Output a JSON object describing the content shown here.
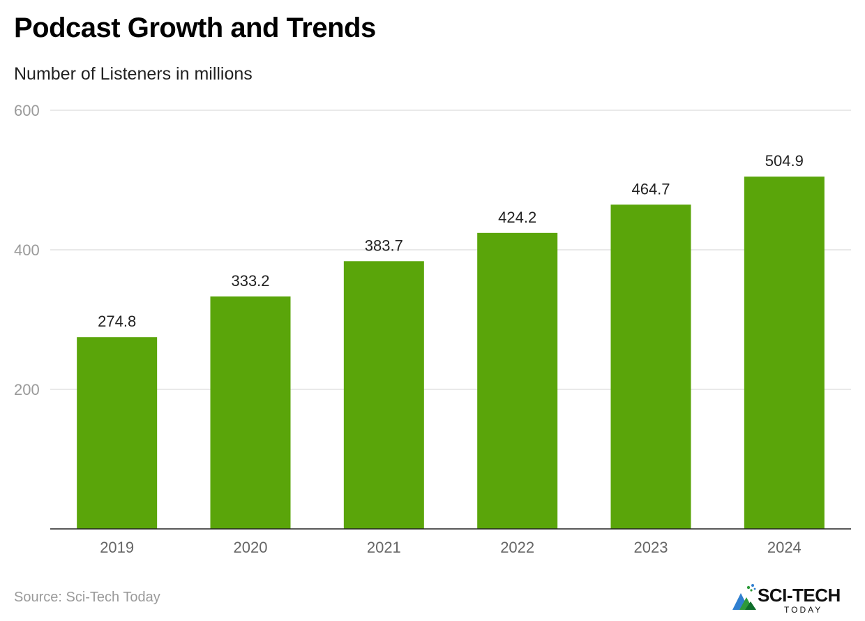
{
  "chart_data": {
    "type": "bar",
    "title": "Podcast Growth and Trends",
    "subtitle": "Number of Listeners in millions",
    "categories": [
      "2019",
      "2020",
      "2021",
      "2022",
      "2023",
      "2024"
    ],
    "values": [
      274.8,
      333.2,
      383.7,
      424.2,
      464.7,
      504.9
    ],
    "value_labels": [
      "274.8",
      "333.2",
      "383.7",
      "424.2",
      "464.7",
      "504.9"
    ],
    "y_ticks": [
      "200",
      "400",
      "600"
    ],
    "ylim": [
      0,
      600
    ],
    "grid": true,
    "bar_color": "#5aa50a"
  },
  "footer": {
    "source": "Source: Sci-Tech Today",
    "logo_text": "SCI-TECH",
    "logo_subtext": "TODAY"
  }
}
